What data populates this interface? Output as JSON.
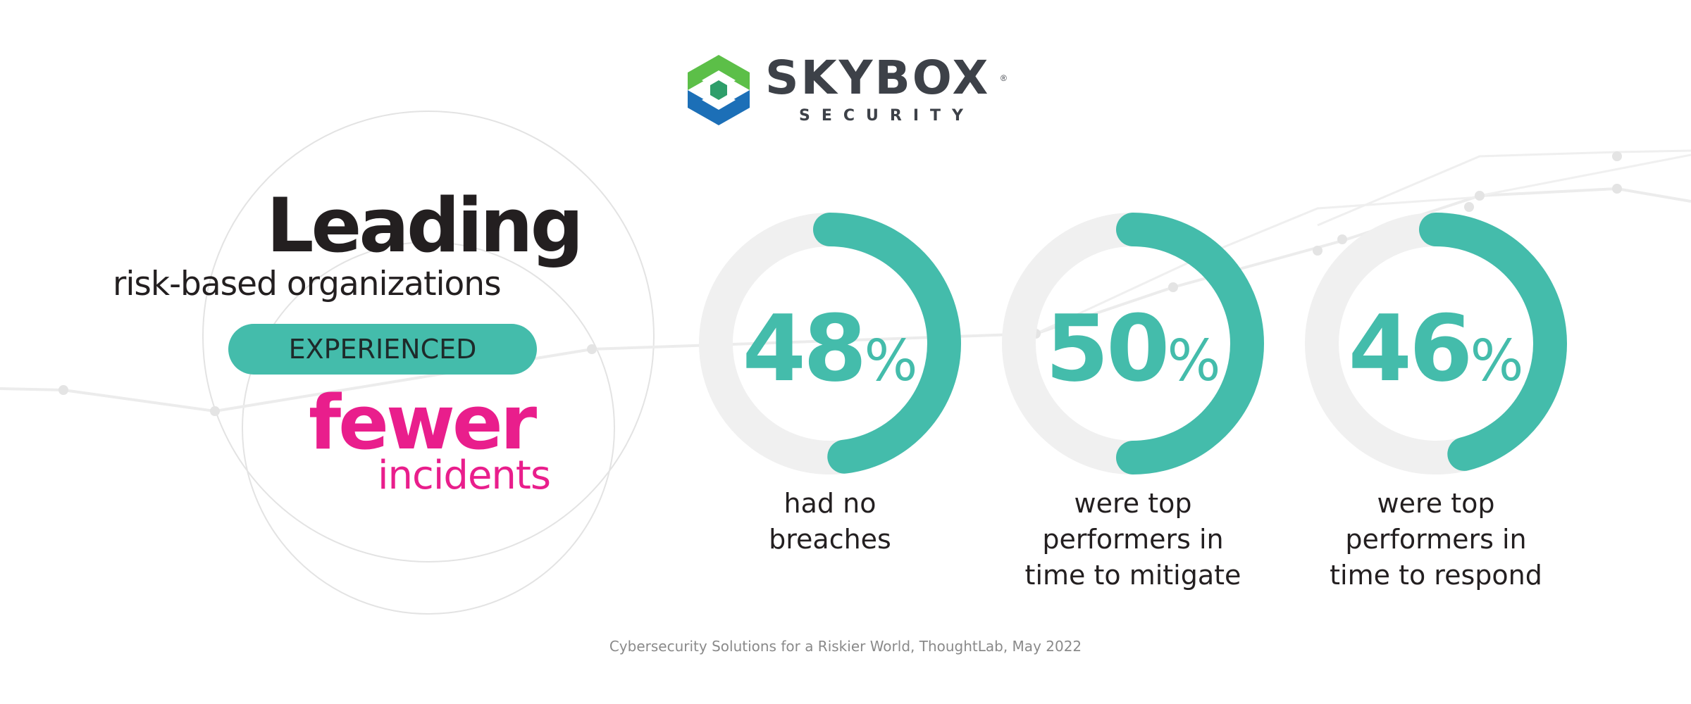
{
  "brand": {
    "name": "SKYBOX",
    "registered": "®",
    "tagline": "SECURITY",
    "colors": {
      "green": "#5cbf48",
      "blue": "#1c6fb7",
      "teal": "#44bcab",
      "magenta": "#e91e8c",
      "dark": "#3d4148"
    }
  },
  "headline": {
    "title": "Leading",
    "subtitle": "risk-based organizations",
    "pill": "EXPERIENCED",
    "emphasis": "fewer",
    "emphasis_sub": "incidents"
  },
  "stats": [
    {
      "value": 48,
      "number": "48",
      "suffix": "%",
      "lines": [
        "had no",
        "breaches"
      ]
    },
    {
      "value": 50,
      "number": "50",
      "suffix": "%",
      "lines": [
        "were top",
        "performers in",
        "time to mitigate"
      ]
    },
    {
      "value": 46,
      "number": "46",
      "suffix": "%",
      "lines": [
        "were top",
        "performers in",
        "time to respond"
      ]
    }
  ],
  "source": "Cybersecurity Solutions for a Riskier World, ThoughtLab, May 2022"
}
